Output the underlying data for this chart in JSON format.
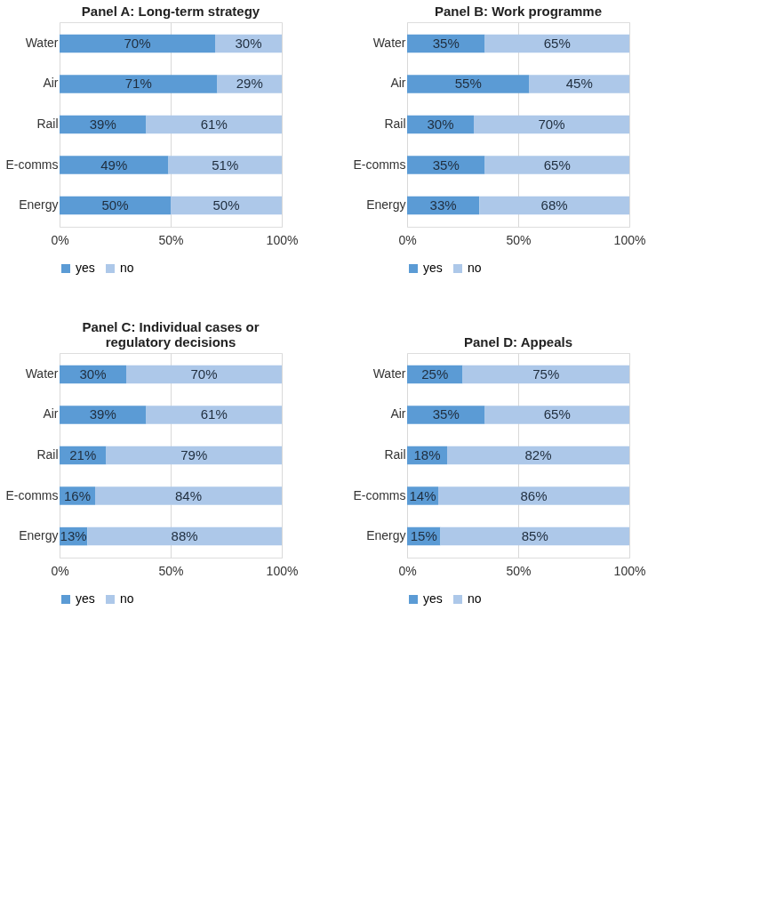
{
  "chart_data": [
    {
      "type": "bar",
      "title": "Panel A: Long-term strategy",
      "orientation": "horizontal",
      "stacked": true,
      "categories": [
        "Water",
        "Air",
        "Rail",
        "E-comms",
        "Energy"
      ],
      "xlim": [
        0,
        100
      ],
      "xticks": [
        {
          "value": 0,
          "label": "0%"
        },
        {
          "value": 50,
          "label": "50%"
        },
        {
          "value": 100,
          "label": "100%"
        }
      ],
      "grid": "x",
      "legend": "bottom",
      "series": [
        {
          "name": "yes",
          "color": "#5b9bd5",
          "values": [
            70,
            71,
            39,
            49,
            50
          ],
          "value_labels": [
            "70%",
            "71%",
            "39%",
            "49%",
            "50%"
          ]
        },
        {
          "name": "no",
          "color": "#adc8e9",
          "values": [
            30,
            29,
            61,
            51,
            50
          ],
          "value_labels": [
            "30%",
            "29%",
            "61%",
            "51%",
            "50%"
          ]
        }
      ]
    },
    {
      "type": "bar",
      "title": "Panel B: Work programme",
      "orientation": "horizontal",
      "stacked": true,
      "categories": [
        "Water",
        "Air",
        "Rail",
        "E-comms",
        "Energy"
      ],
      "xlim": [
        0,
        100
      ],
      "xticks": [
        {
          "value": 0,
          "label": "0%"
        },
        {
          "value": 50,
          "label": "50%"
        },
        {
          "value": 100,
          "label": "100%"
        }
      ],
      "grid": "x",
      "legend": "bottom",
      "series": [
        {
          "name": "yes",
          "color": "#5b9bd5",
          "values": [
            35,
            55,
            30,
            35,
            32.5
          ],
          "value_labels": [
            "35%",
            "55%",
            "30%",
            "35%",
            "33%"
          ]
        },
        {
          "name": "no",
          "color": "#adc8e9",
          "values": [
            65,
            45,
            70,
            65,
            67.5
          ],
          "value_labels": [
            "65%",
            "45%",
            "70%",
            "65%",
            "68%"
          ]
        }
      ]
    },
    {
      "type": "bar",
      "title": "Panel C: Individual cases or regulatory decisions",
      "orientation": "horizontal",
      "stacked": true,
      "categories": [
        "Water",
        "Air",
        "Rail",
        "E-comms",
        "Energy"
      ],
      "xlim": [
        0,
        100
      ],
      "xticks": [
        {
          "value": 0,
          "label": "0%"
        },
        {
          "value": 50,
          "label": "50%"
        },
        {
          "value": 100,
          "label": "100%"
        }
      ],
      "grid": "x",
      "legend": "bottom",
      "series": [
        {
          "name": "yes",
          "color": "#5b9bd5",
          "values": [
            30,
            39,
            21,
            16,
            12.5
          ],
          "value_labels": [
            "30%",
            "39%",
            "21%",
            "16%",
            "13%"
          ]
        },
        {
          "name": "no",
          "color": "#adc8e9",
          "values": [
            70,
            61,
            79,
            84,
            87.5
          ],
          "value_labels": [
            "70%",
            "61%",
            "79%",
            "84%",
            "88%"
          ]
        }
      ]
    },
    {
      "type": "bar",
      "title": "Panel D: Appeals",
      "orientation": "horizontal",
      "stacked": true,
      "categories": [
        "Water",
        "Air",
        "Rail",
        "E-comms",
        "Energy"
      ],
      "xlim": [
        0,
        100
      ],
      "xticks": [
        {
          "value": 0,
          "label": "0%"
        },
        {
          "value": 50,
          "label": "50%"
        },
        {
          "value": 100,
          "label": "100%"
        }
      ],
      "grid": "x",
      "legend": "bottom",
      "series": [
        {
          "name": "yes",
          "color": "#5b9bd5",
          "values": [
            25,
            35,
            18,
            14,
            15
          ],
          "value_labels": [
            "25%",
            "35%",
            "18%",
            "14%",
            "15%"
          ]
        },
        {
          "name": "no",
          "color": "#adc8e9",
          "values": [
            75,
            65,
            82,
            86,
            85
          ],
          "value_labels": [
            "75%",
            "65%",
            "82%",
            "86%",
            "85%"
          ]
        }
      ]
    }
  ]
}
